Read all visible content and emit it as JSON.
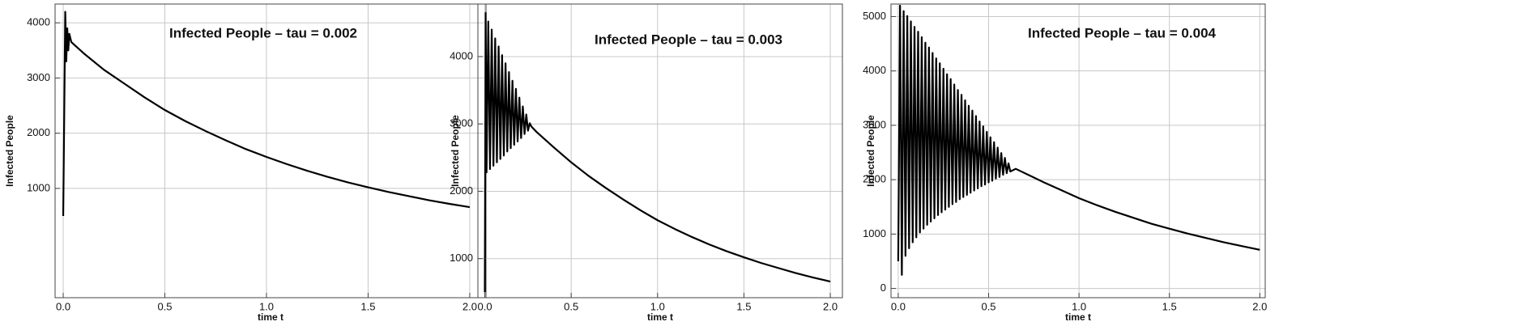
{
  "chart_data": [
    {
      "type": "line",
      "title": "Infected People – tau = 0.002",
      "x_label": "time t",
      "y_label": "Infected People",
      "color": "#000000",
      "grid": true,
      "xlim": [
        -0.04,
        2.08
      ],
      "ylim": [
        -980,
        4340
      ],
      "xticks": [
        {
          "value": 0,
          "label": "0.0"
        },
        0.5,
        {
          "value": 1,
          "label": "1.0"
        },
        1.5,
        {
          "value": 2,
          "label": "2.0"
        }
      ],
      "yticks": [
        1000,
        2000,
        3000,
        4000
      ],
      "x": [
        0,
        0.01,
        0.015,
        0.02,
        0.025,
        0.03,
        0.04,
        0.1,
        0.2,
        0.3,
        0.4,
        0.5,
        0.6,
        0.7,
        0.8,
        0.9,
        1.0,
        1.1,
        1.2,
        1.3,
        1.4,
        1.5,
        1.6,
        1.7,
        1.8,
        1.9,
        2.0
      ],
      "values": [
        500,
        4200,
        3300,
        3900,
        3500,
        3800,
        3650,
        3450,
        3150,
        2900,
        2650,
        2420,
        2220,
        2040,
        1870,
        1710,
        1570,
        1440,
        1320,
        1210,
        1110,
        1020,
        935,
        860,
        785,
        720,
        660
      ]
    },
    {
      "type": "line",
      "title": "Infected People – tau = 0.003",
      "x_label": "time t",
      "y_label": "Infected People",
      "color": "#000000",
      "grid": true,
      "xlim": [
        -0.04,
        2.07
      ],
      "ylim": [
        420,
        4780
      ],
      "xticks": [
        {
          "value": 0,
          "label": "0.0"
        },
        0.5,
        {
          "value": 1,
          "label": "1.0"
        },
        1.5,
        {
          "value": 2,
          "label": "2.0"
        }
      ],
      "yticks": [
        1000,
        2000,
        3000,
        4000
      ],
      "x": [
        0,
        0.005,
        0.01,
        0.02,
        0.03,
        0.04,
        0.05,
        0.06,
        0.07,
        0.08,
        0.09,
        0.1,
        0.11,
        0.12,
        0.13,
        0.14,
        0.15,
        0.16,
        0.17,
        0.18,
        0.19,
        0.2,
        0.21,
        0.22,
        0.23,
        0.24,
        0.25,
        0.26,
        0.27,
        0.3,
        0.4,
        0.5,
        0.6,
        0.7,
        0.8,
        0.9,
        1.0,
        1.1,
        1.2,
        1.3,
        1.4,
        1.5,
        1.6,
        1.7,
        1.8,
        1.9,
        2.0
      ],
      "values": [
        500,
        4650,
        2280,
        4520,
        2330,
        4400,
        2380,
        4270,
        2430,
        4150,
        2480,
        4020,
        2530,
        3900,
        2590,
        3770,
        2640,
        3640,
        2690,
        3520,
        2740,
        3390,
        2790,
        3260,
        2850,
        3140,
        2900,
        3010,
        2960,
        2880,
        2650,
        2430,
        2230,
        2050,
        1880,
        1720,
        1570,
        1440,
        1320,
        1210,
        1110,
        1020,
        935,
        860,
        785,
        720,
        660
      ]
    },
    {
      "type": "line",
      "title": "Infected People – tau = 0.004",
      "x_label": "time t",
      "y_label": "Infected People",
      "color": "#000000",
      "grid": true,
      "xlim": [
        -0.04,
        2.03
      ],
      "ylim": [
        -170,
        5230
      ],
      "xticks": [
        {
          "value": 0,
          "label": "0.0"
        },
        0.5,
        {
          "value": 1,
          "label": "1.0"
        },
        1.5,
        {
          "value": 2,
          "label": "2.0"
        }
      ],
      "yticks": [
        0,
        1000,
        2000,
        3000,
        4000,
        5000
      ],
      "x": [
        0,
        0.01,
        0.02,
        0.03,
        0.04,
        0.05,
        0.06,
        0.07,
        0.08,
        0.09,
        0.1,
        0.11,
        0.12,
        0.13,
        0.14,
        0.15,
        0.16,
        0.17,
        0.18,
        0.19,
        0.2,
        0.21,
        0.22,
        0.23,
        0.24,
        0.25,
        0.26,
        0.27,
        0.28,
        0.29,
        0.3,
        0.31,
        0.32,
        0.33,
        0.34,
        0.35,
        0.36,
        0.37,
        0.38,
        0.39,
        0.4,
        0.41,
        0.42,
        0.43,
        0.44,
        0.45,
        0.46,
        0.47,
        0.48,
        0.49,
        0.5,
        0.51,
        0.52,
        0.53,
        0.54,
        0.55,
        0.56,
        0.57,
        0.58,
        0.59,
        0.6,
        0.61,
        0.62,
        0.65,
        0.7,
        0.8,
        0.9,
        1.0,
        1.1,
        1.2,
        1.3,
        1.4,
        1.5,
        1.6,
        1.7,
        1.8,
        1.9,
        2.0
      ],
      "values": [
        500,
        5200,
        250,
        5100,
        600,
        5010,
        740,
        4910,
        850,
        4810,
        940,
        4720,
        1030,
        4620,
        1100,
        4520,
        1170,
        4430,
        1230,
        4330,
        1290,
        4230,
        1350,
        4140,
        1400,
        4040,
        1450,
        3940,
        1500,
        3850,
        1550,
        3750,
        1590,
        3650,
        1640,
        3560,
        1680,
        3460,
        1720,
        3360,
        1760,
        3270,
        1800,
        3170,
        1840,
        3070,
        1880,
        2980,
        1910,
        2880,
        1950,
        2780,
        1980,
        2690,
        2020,
        2590,
        2050,
        2490,
        2090,
        2400,
        2120,
        2300,
        2150,
        2200,
        2120,
        1960,
        1810,
        1660,
        1530,
        1410,
        1300,
        1190,
        1100,
        1010,
        930,
        850,
        780,
        710
      ]
    }
  ]
}
